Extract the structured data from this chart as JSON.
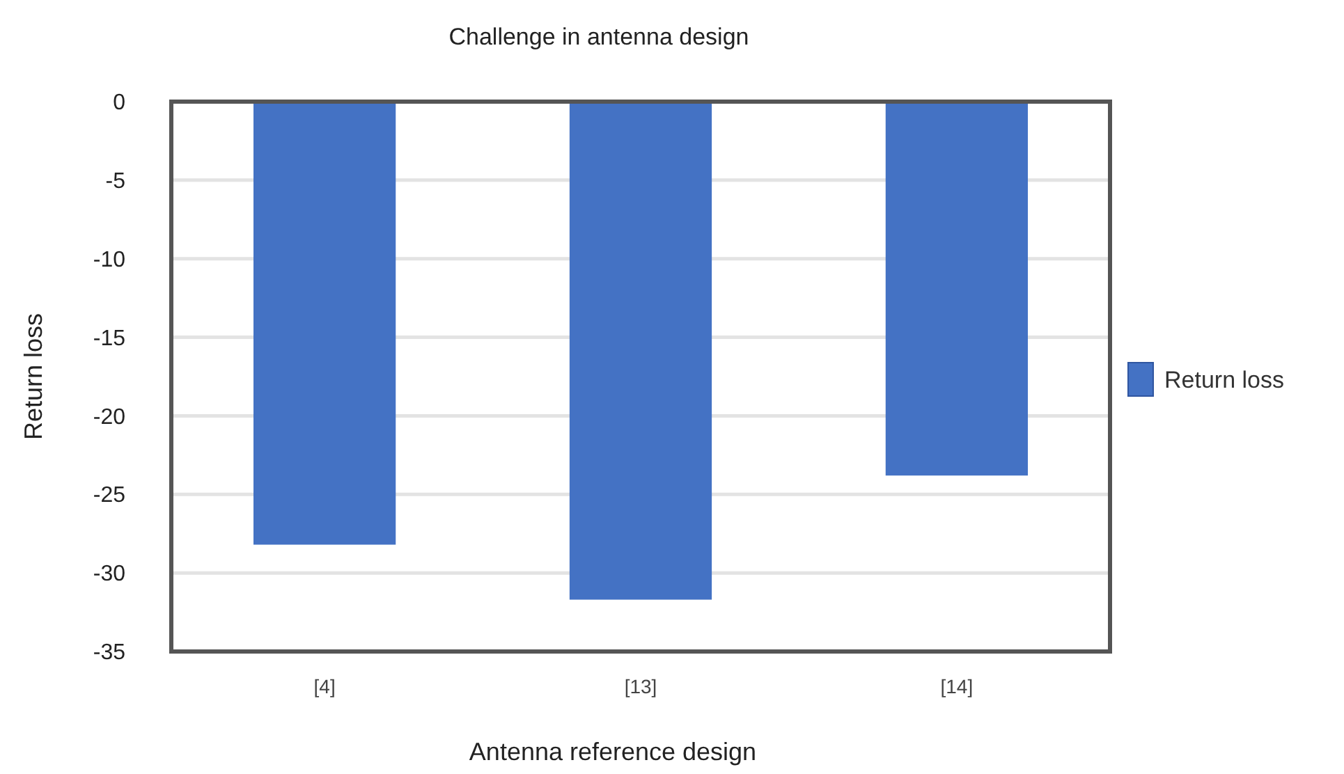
{
  "chart_data": {
    "type": "bar",
    "title": "Challenge in antenna design",
    "xlabel": "Antenna reference design",
    "ylabel": "Return loss",
    "categories": [
      "[4]",
      "[13]",
      "[14]"
    ],
    "series": [
      {
        "name": "Return loss",
        "color": "#4472c4",
        "values": [
          -28.2,
          -31.7,
          -23.8
        ]
      }
    ],
    "ylim": [
      -35,
      0
    ],
    "yticks": [
      0,
      -5,
      -10,
      -15,
      -20,
      -25,
      -30,
      -35
    ],
    "grid": "y",
    "legend": "right"
  }
}
